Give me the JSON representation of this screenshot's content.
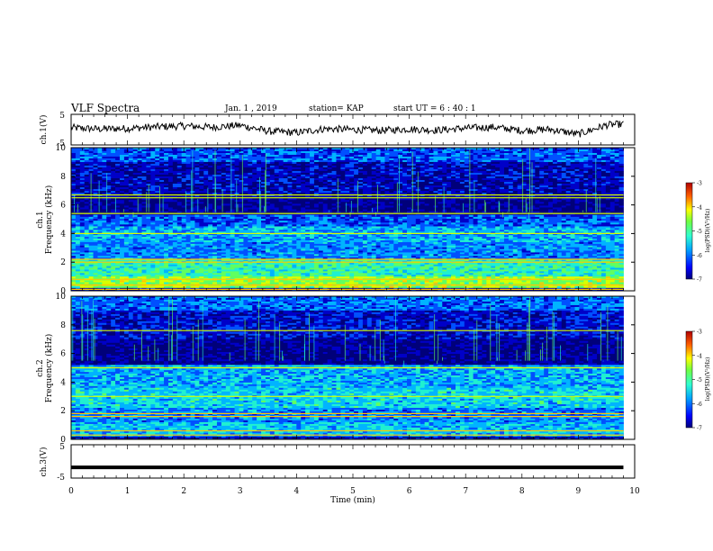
{
  "header": {
    "title": "VLF Spectra",
    "date": "Jan. 1 , 2019",
    "station": "station= KAP",
    "start": "start UT = 6 : 40 : 1"
  },
  "colors": {
    "spectrum": [
      "#00007a",
      "#0000c8",
      "#0050ff",
      "#00b4ff",
      "#20f0d0",
      "#60ff60",
      "#d8ff00",
      "#ffc800",
      "#ff3c00",
      "#b40000"
    ],
    "trace": "#000000"
  },
  "chart_data": [
    {
      "type": "line",
      "name": "ch1-waveform",
      "ylabel": "ch.1(V)",
      "ylim": [
        -5,
        5
      ],
      "yticks": [
        "5",
        "-5"
      ],
      "xlim": [
        0,
        10
      ],
      "x": [
        0,
        0.5,
        1,
        1.5,
        2,
        2.5,
        3,
        3.5,
        4,
        4.5,
        5,
        5.5,
        6,
        6.5,
        7,
        7.5,
        8,
        8.5,
        9,
        9.5,
        9.8
      ],
      "y": [
        0.6,
        0.2,
        0.4,
        0.9,
        1.2,
        0.8,
        1.4,
        -0.5,
        -1.0,
        0.3,
        0.0,
        -0.3,
        0.2,
        -0.2,
        0.5,
        0.8,
        -0.3,
        0.1,
        -1.5,
        1.5,
        1.8
      ]
    },
    {
      "type": "heatmap",
      "name": "ch1-spectrogram",
      "ylabel": "ch.1\nFrequency (kHz)",
      "ylabel_channel": "ch.1",
      "ylabel_text": "Frequency (kHz)",
      "ylim": [
        0,
        10
      ],
      "yticks": [
        "0",
        "2",
        "4",
        "6",
        "8",
        "10"
      ],
      "xlim": [
        0,
        10
      ],
      "colorbar_label": "log(PSD)(V²/Hz)",
      "colorbar_range": [
        -7,
        -3
      ],
      "colorbar_ticks": [
        "-3",
        "-4",
        "-5",
        "-6",
        "-7"
      ],
      "bands": [
        {
          "f0": 9.0,
          "f1": 10.0,
          "level": -6.0
        },
        {
          "f0": 6.6,
          "f1": 9.0,
          "level": -6.5
        },
        {
          "f0": 5.3,
          "f1": 6.6,
          "level": -6.7
        },
        {
          "f0": 4.5,
          "f1": 5.3,
          "level": -6.0
        },
        {
          "f0": 3.4,
          "f1": 4.5,
          "level": -5.6
        },
        {
          "f0": 2.2,
          "f1": 3.4,
          "level": -5.8
        },
        {
          "f0": 1.0,
          "f1": 2.2,
          "level": -5.1
        },
        {
          "f0": 0.2,
          "f1": 1.0,
          "level": -4.6
        },
        {
          "f0": 0.0,
          "f1": 0.2,
          "level": -6.5
        }
      ],
      "lines_khz": [
        6.7,
        6.5,
        5.4,
        4.0,
        2.2,
        2.0,
        0.8,
        0.4,
        0.1
      ]
    },
    {
      "type": "heatmap",
      "name": "ch2-spectrogram",
      "ylabel": "ch.2\nFrequency (kHz)",
      "ylabel_channel": "ch.2",
      "ylabel_text": "Frequency (kHz)",
      "ylim": [
        0,
        10
      ],
      "yticks": [
        "0",
        "2",
        "4",
        "6",
        "8",
        "10"
      ],
      "xlim": [
        0,
        10
      ],
      "colorbar_label": "log(PSD)(V²/Hz)",
      "colorbar_range": [
        -7,
        -3
      ],
      "colorbar_ticks": [
        "-3",
        "-4",
        "-5",
        "-6",
        "-7"
      ],
      "bands": [
        {
          "f0": 9.0,
          "f1": 10.0,
          "level": -5.9
        },
        {
          "f0": 7.0,
          "f1": 9.0,
          "level": -6.4
        },
        {
          "f0": 5.2,
          "f1": 7.0,
          "level": -6.7
        },
        {
          "f0": 3.6,
          "f1": 5.2,
          "level": -5.6
        },
        {
          "f0": 2.2,
          "f1": 3.6,
          "level": -5.4
        },
        {
          "f0": 1.2,
          "f1": 2.2,
          "level": -5.8
        },
        {
          "f0": 0.2,
          "f1": 1.2,
          "level": -5.5
        },
        {
          "f0": 0.0,
          "f1": 0.2,
          "level": -6.5
        }
      ],
      "lines_khz": [
        7.6,
        5.0,
        3.0,
        1.8,
        1.6,
        0.6,
        0.3
      ]
    },
    {
      "type": "line",
      "name": "ch3-waveform",
      "ylabel": "ch.3(V)",
      "ylim": [
        -5,
        5
      ],
      "yticks": [
        "5",
        "-5"
      ],
      "xlim": [
        0,
        10
      ],
      "xlabel": "Time (min)",
      "xticks": [
        "0",
        "1",
        "2",
        "3",
        "4",
        "5",
        "6",
        "7",
        "8",
        "9",
        "10"
      ],
      "x": [
        0,
        9.8
      ],
      "y": [
        -1.8,
        -1.8
      ]
    }
  ]
}
